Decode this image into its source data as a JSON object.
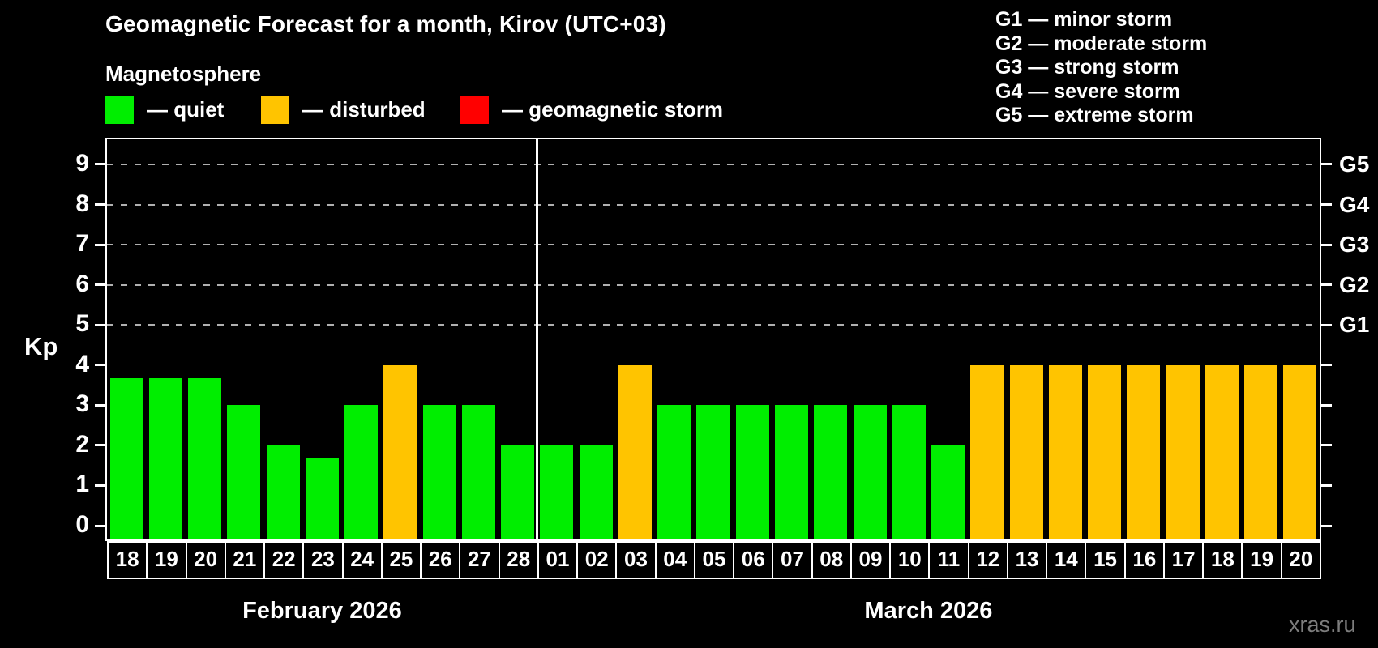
{
  "title": "Geomagnetic Forecast for a month, Kirov (UTC+03)",
  "subtitle": "Magnetosphere",
  "legend_items": [
    {
      "key": "quiet",
      "label": "— quiet",
      "color": "#00ee00"
    },
    {
      "key": "disturbed",
      "label": "— disturbed",
      "color": "#ffc400"
    },
    {
      "key": "storm",
      "label": "— geomagnetic storm",
      "color": "#ff0000"
    }
  ],
  "g_scale": [
    {
      "code": "G1",
      "desc": "minor storm",
      "kp": 5
    },
    {
      "code": "G2",
      "desc": "moderate storm",
      "kp": 6
    },
    {
      "code": "G3",
      "desc": "strong storm",
      "kp": 7
    },
    {
      "code": "G4",
      "desc": "severe storm",
      "kp": 8
    },
    {
      "code": "G5",
      "desc": "extreme storm",
      "kp": 9
    }
  ],
  "watermark": "xras.ru",
  "chart_data": {
    "type": "bar",
    "ylabel": "Kp",
    "ylim": [
      0,
      9
    ],
    "yticks": [
      "0",
      "1",
      "2",
      "3",
      "4",
      "5",
      "6",
      "7",
      "8",
      "9"
    ],
    "grid_kp": [
      5,
      6,
      7,
      8,
      9
    ],
    "legend_position": "top",
    "months": [
      {
        "key": "feb",
        "label": "February 2026",
        "days": 11
      },
      {
        "key": "mar",
        "label": "March 2026",
        "days": 20
      }
    ],
    "bars": [
      {
        "month": "feb",
        "day": "18",
        "kp": 3.67,
        "status": "quiet"
      },
      {
        "month": "feb",
        "day": "19",
        "kp": 3.67,
        "status": "quiet"
      },
      {
        "month": "feb",
        "day": "20",
        "kp": 3.67,
        "status": "quiet"
      },
      {
        "month": "feb",
        "day": "21",
        "kp": 3,
        "status": "quiet"
      },
      {
        "month": "feb",
        "day": "22",
        "kp": 2,
        "status": "quiet"
      },
      {
        "month": "feb",
        "day": "23",
        "kp": 1.67,
        "status": "quiet"
      },
      {
        "month": "feb",
        "day": "24",
        "kp": 3,
        "status": "quiet"
      },
      {
        "month": "feb",
        "day": "25",
        "kp": 4,
        "status": "disturbed"
      },
      {
        "month": "feb",
        "day": "26",
        "kp": 3,
        "status": "quiet"
      },
      {
        "month": "feb",
        "day": "27",
        "kp": 3,
        "status": "quiet"
      },
      {
        "month": "feb",
        "day": "28",
        "kp": 2,
        "status": "quiet"
      },
      {
        "month": "mar",
        "day": "01",
        "kp": 2,
        "status": "quiet"
      },
      {
        "month": "mar",
        "day": "02",
        "kp": 2,
        "status": "quiet"
      },
      {
        "month": "mar",
        "day": "03",
        "kp": 4,
        "status": "disturbed"
      },
      {
        "month": "mar",
        "day": "04",
        "kp": 3,
        "status": "quiet"
      },
      {
        "month": "mar",
        "day": "05",
        "kp": 3,
        "status": "quiet"
      },
      {
        "month": "mar",
        "day": "06",
        "kp": 3,
        "status": "quiet"
      },
      {
        "month": "mar",
        "day": "07",
        "kp": 3,
        "status": "quiet"
      },
      {
        "month": "mar",
        "day": "08",
        "kp": 3,
        "status": "quiet"
      },
      {
        "month": "mar",
        "day": "09",
        "kp": 3,
        "status": "quiet"
      },
      {
        "month": "mar",
        "day": "10",
        "kp": 3,
        "status": "quiet"
      },
      {
        "month": "mar",
        "day": "11",
        "kp": 2,
        "status": "quiet"
      },
      {
        "month": "mar",
        "day": "12",
        "kp": 4,
        "status": "disturbed"
      },
      {
        "month": "mar",
        "day": "13",
        "kp": 4,
        "status": "disturbed"
      },
      {
        "month": "mar",
        "day": "14",
        "kp": 4,
        "status": "disturbed"
      },
      {
        "month": "mar",
        "day": "15",
        "kp": 4,
        "status": "disturbed"
      },
      {
        "month": "mar",
        "day": "16",
        "kp": 4,
        "status": "disturbed"
      },
      {
        "month": "mar",
        "day": "17",
        "kp": 4,
        "status": "disturbed"
      },
      {
        "month": "mar",
        "day": "18",
        "kp": 4,
        "status": "disturbed"
      },
      {
        "month": "mar",
        "day": "19",
        "kp": 4,
        "status": "disturbed"
      },
      {
        "month": "mar",
        "day": "20",
        "kp": 4,
        "status": "disturbed"
      }
    ]
  }
}
